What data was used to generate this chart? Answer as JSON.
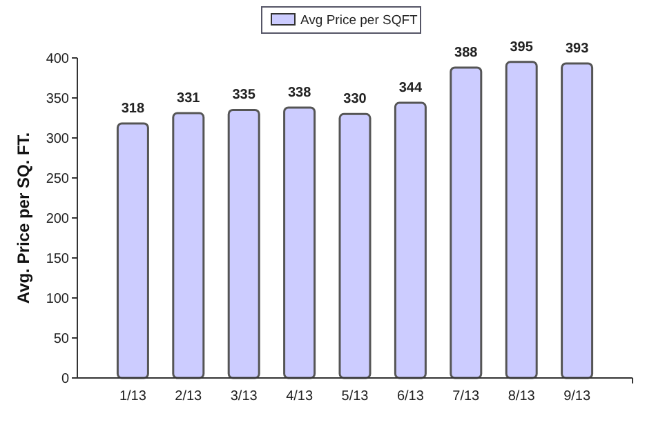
{
  "chart_data": {
    "type": "bar",
    "ylabel": "Avg. Price per SQ. FT.",
    "categories": [
      "1/13",
      "2/13",
      "3/13",
      "4/13",
      "5/13",
      "6/13",
      "7/13",
      "8/13",
      "9/13"
    ],
    "series": [
      {
        "name": "Avg Price per SQFT",
        "color": "#ccccff",
        "values": [
          318,
          331,
          335,
          338,
          330,
          344,
          388,
          395,
          393
        ]
      }
    ],
    "ylim": [
      0,
      400
    ],
    "yticks": [
      0,
      50,
      100,
      150,
      200,
      250,
      300,
      350,
      400
    ],
    "data_labels": true,
    "legend": "top",
    "grid": false
  }
}
